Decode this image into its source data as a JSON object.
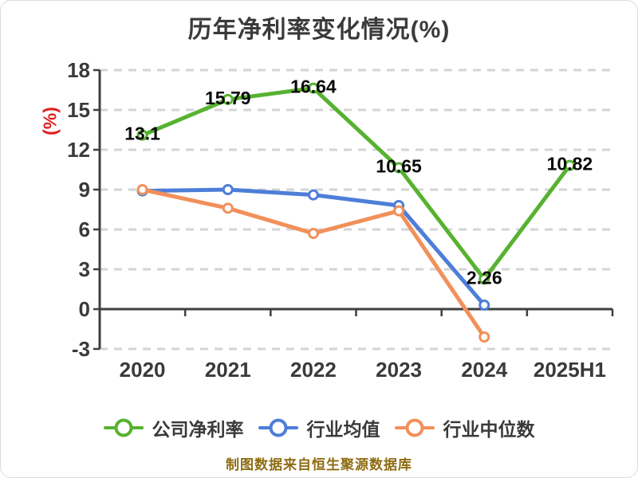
{
  "chart": {
    "title": "历年净利率变化情况(%)",
    "y_unit_label": "(%)",
    "source_note": "制图数据来自恒生聚源数据库"
  },
  "chart_data": {
    "type": "line",
    "title": "历年净利率变化情况(%)",
    "categories": [
      "2020",
      "2021",
      "2022",
      "2023",
      "2024",
      "2025H1"
    ],
    "series": [
      {
        "name": "公司净利率",
        "color": "#56b230",
        "values": [
          13.1,
          15.79,
          16.64,
          10.65,
          2.26,
          10.82
        ],
        "labels": [
          "13.1",
          "15.79",
          "16.64",
          "10.65",
          "2.26",
          "10.82"
        ],
        "labeled": true,
        "z": 3
      },
      {
        "name": "行业均值",
        "color": "#4d7ed8",
        "values": [
          8.9,
          9.0,
          8.6,
          7.8,
          0.3,
          null
        ],
        "labeled": false,
        "z": 1
      },
      {
        "name": "行业中位数",
        "color": "#f1905a",
        "values": [
          9.0,
          7.6,
          5.7,
          7.4,
          -2.1,
          null
        ],
        "labeled": false,
        "z": 2
      }
    ],
    "xlabel": "",
    "ylabel": "(%)",
    "ylim": [
      -3,
      18
    ],
    "y_ticks": [
      -3,
      0,
      3,
      6,
      9,
      12,
      15,
      18
    ],
    "grid": "horizontal dashed",
    "legend_position": "bottom",
    "colors": {
      "axis_text": "#3a3a3a",
      "data_label": "#0a0a0a",
      "gridline": "#d4d4d4",
      "axis_line": "#3f3f3f",
      "y_unit": "#e01f1f",
      "source_note": "#8e6c12"
    },
    "source_note": "制图数据来自恒生聚源数据库"
  }
}
